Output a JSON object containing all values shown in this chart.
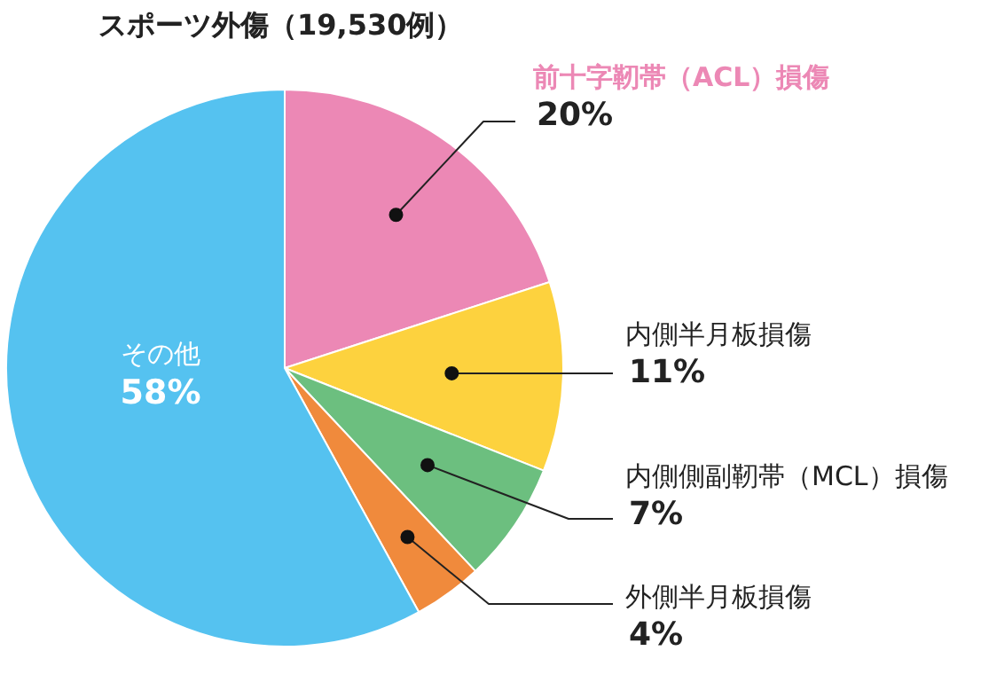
{
  "chart_data": {
    "type": "pie",
    "title": "スポーツ外傷（19,530例）",
    "categories": [
      "前十字靭帯（ACL）損傷",
      "内側半月板損傷",
      "内側側副靭帯（MCL）損傷",
      "外側半月板損傷",
      "その他"
    ],
    "values": [
      20,
      11,
      7,
      4,
      58
    ],
    "value_labels": [
      "20%",
      "11%",
      "7%",
      "4%",
      "58%"
    ],
    "colors": [
      "#ec88b5",
      "#fdd23e",
      "#6cbf7f",
      "#f08a3c",
      "#55c2f0"
    ]
  }
}
